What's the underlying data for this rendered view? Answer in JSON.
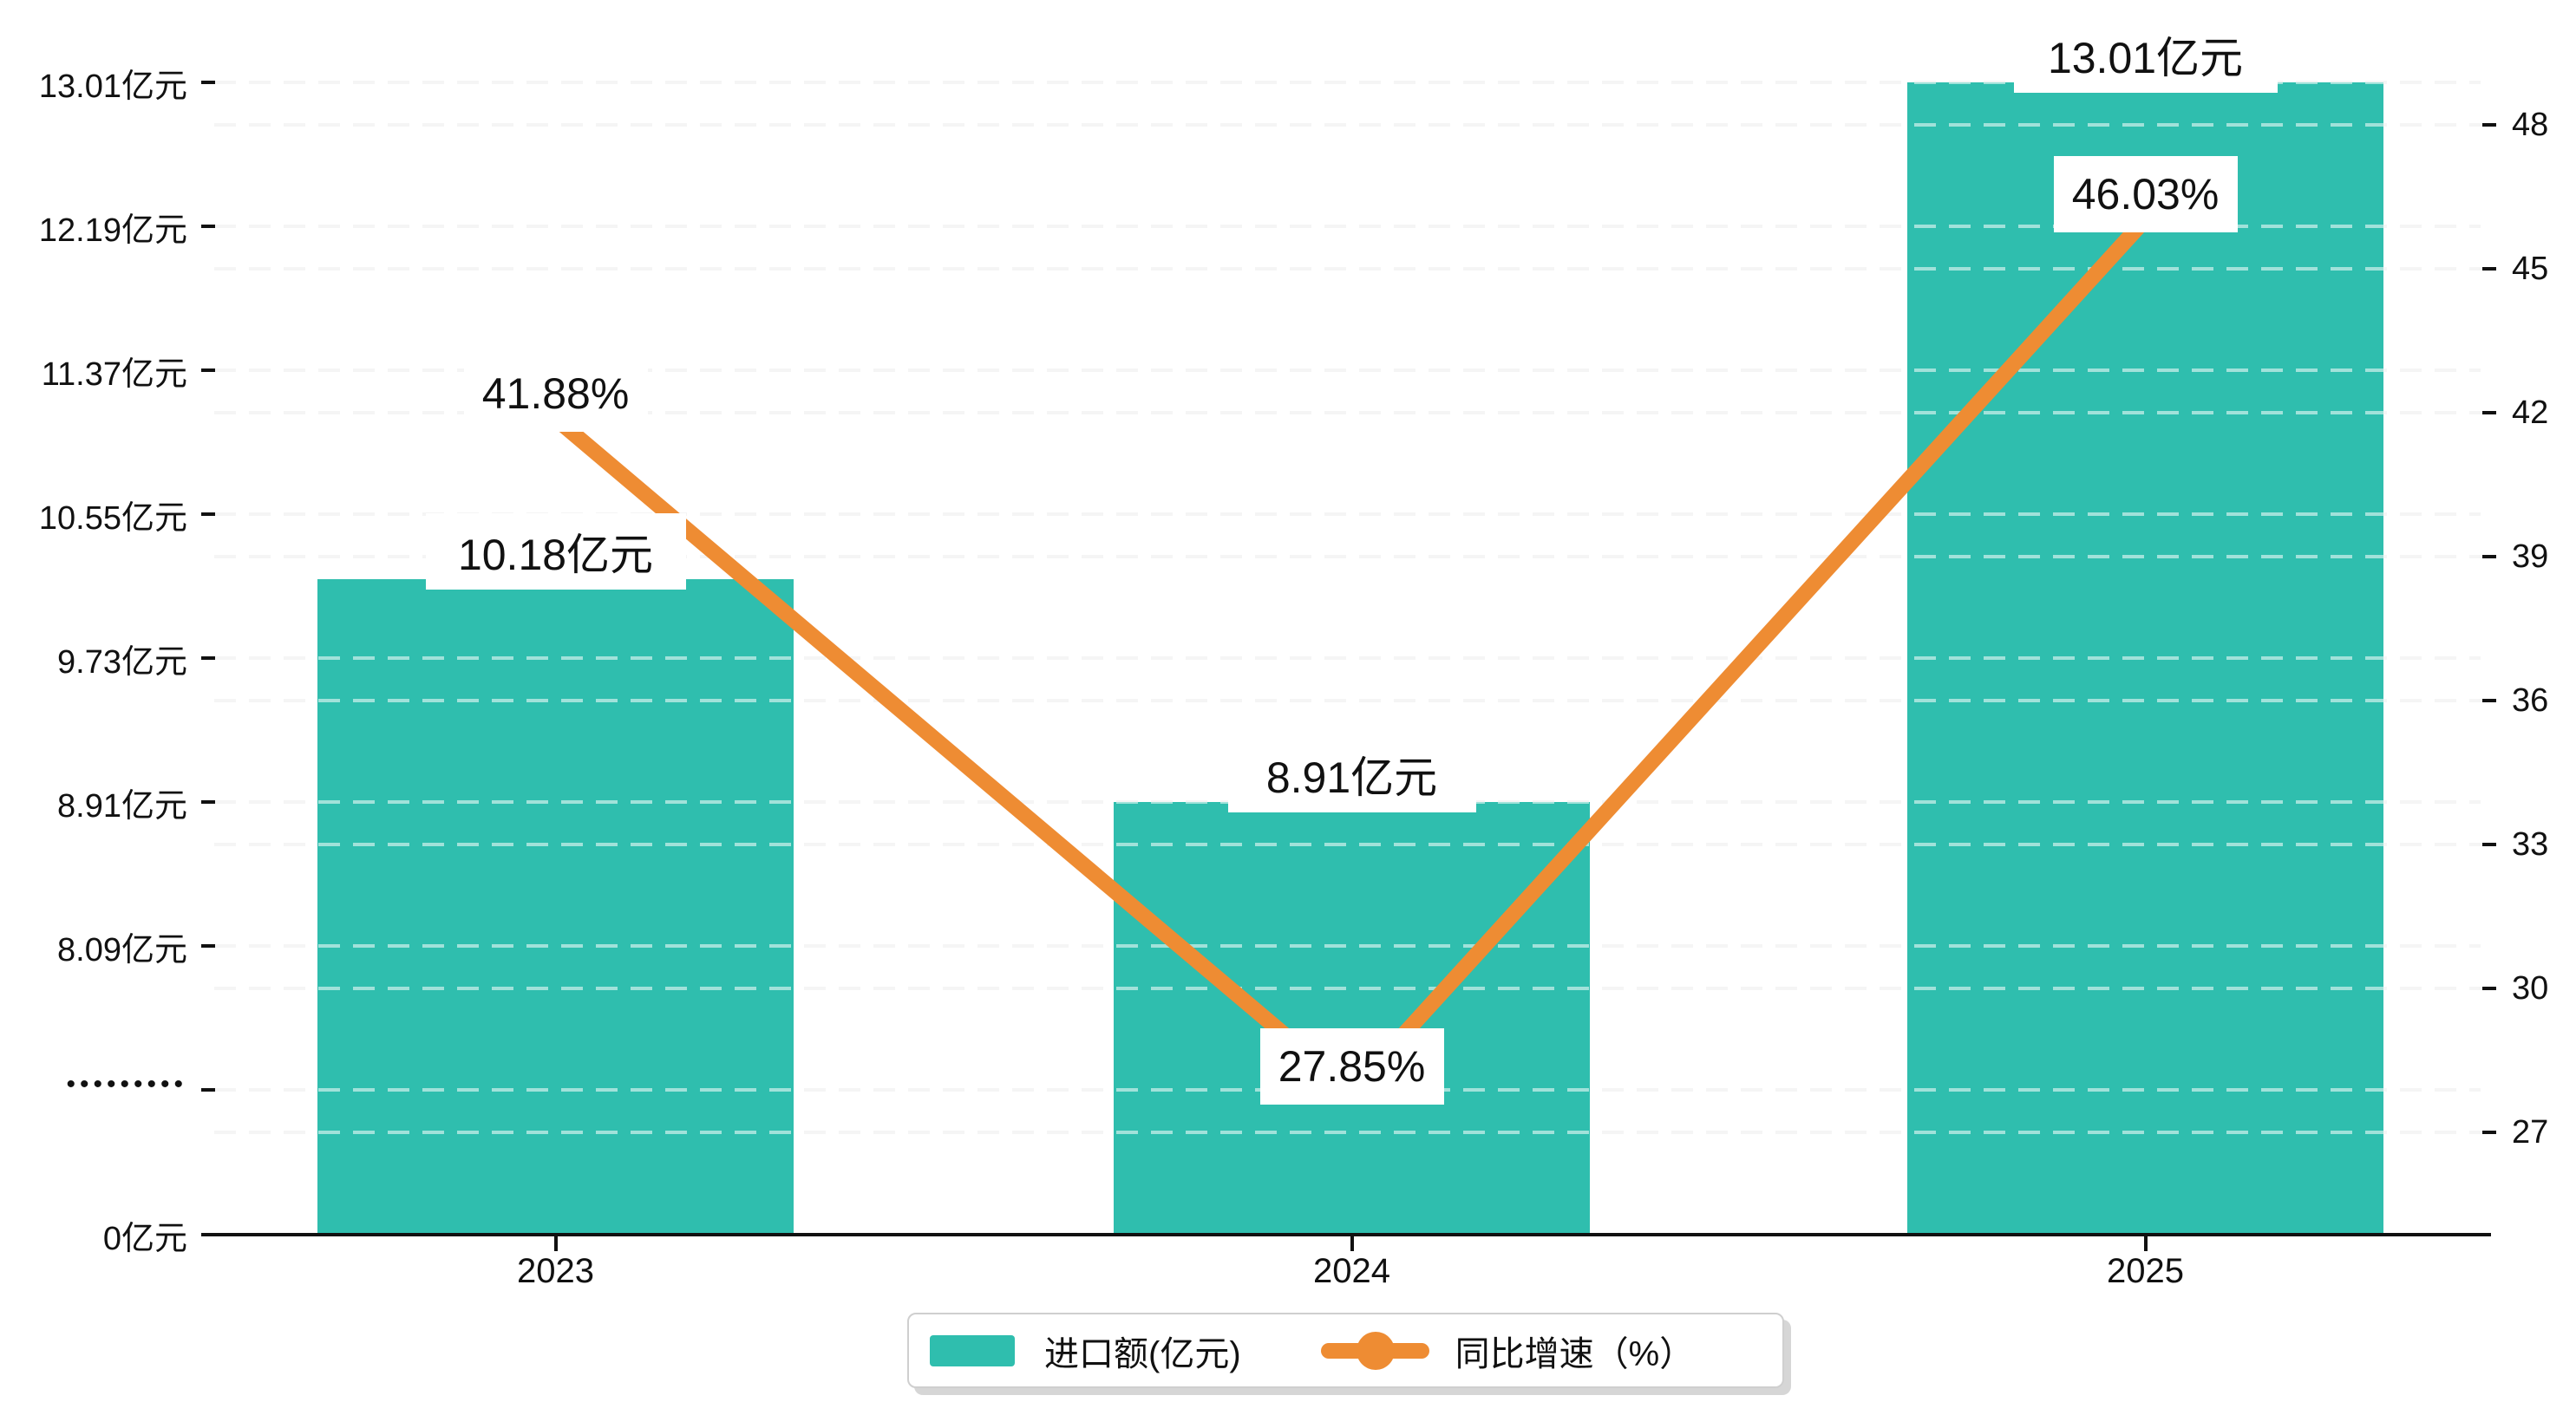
{
  "chart_data": {
    "type": "bar+line combo",
    "categories": [
      "2023",
      "2024",
      "2025"
    ],
    "series": [
      {
        "name": "进口额(亿元)",
        "type": "bar",
        "values": [
          10.18,
          8.91,
          13.01
        ],
        "labels": [
          "10.18亿元",
          "8.91亿元",
          "13.01亿元"
        ],
        "color": "#2FBEAE"
      },
      {
        "name": "同比增速（%）",
        "type": "line",
        "values": [
          41.88,
          27.85,
          46.03
        ],
        "labels": [
          "41.88%",
          "27.85%",
          "46.03%"
        ],
        "color": "#EE8C33"
      }
    ],
    "left_axis": {
      "tick_labels": [
        "13.01亿元",
        "12.19亿元",
        "11.37亿元",
        "10.55亿元",
        "9.73亿元",
        "8.91亿元",
        "8.09亿元",
        "•••••••••"
      ],
      "tick_values": [
        13.01,
        12.19,
        11.37,
        10.55,
        9.73,
        8.91,
        8.09,
        null
      ],
      "baseline_label": "0亿元",
      "broken_axis": true
    },
    "right_axis": {
      "tick_labels": [
        "48",
        "45",
        "42",
        "39",
        "36",
        "33",
        "30",
        "27"
      ],
      "tick_values": [
        48,
        45,
        42,
        39,
        36,
        33,
        30,
        27
      ]
    },
    "legend": {
      "position": "bottom-center",
      "items": [
        {
          "label": "进口额(亿元)",
          "marker": "bar-swatch",
          "color": "#2FBEAE"
        },
        {
          "label": "同比增速（%）",
          "marker": "line-with-dot",
          "color": "#EE8C33"
        }
      ]
    },
    "title": "",
    "grid": "dashed, both axes",
    "colors": {
      "bar": "#2FBEAE",
      "line": "#EE8C33",
      "gridline": "#e8e8e8",
      "axis": "#111111",
      "label_box_background": "#ffffff",
      "text": "#111111"
    }
  }
}
